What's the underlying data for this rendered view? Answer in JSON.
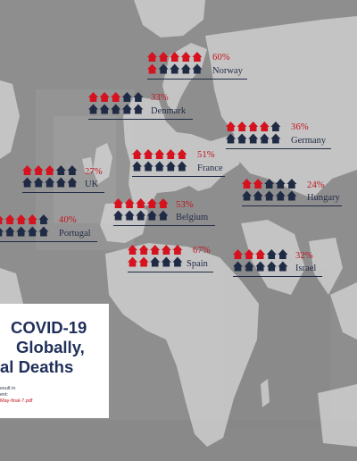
{
  "chart_data": {
    "type": "pictogram",
    "icons_per_country": 10,
    "highlight_color": "#d5121e",
    "base_color": "#1f2a44",
    "series": [
      {
        "country": "Norway",
        "value": 60,
        "label": "60%"
      },
      {
        "country": "Denmark",
        "value": 33,
        "label": "33%"
      },
      {
        "country": "Germany",
        "value": 36,
        "label": "36%"
      },
      {
        "country": "France",
        "value": 51,
        "label": "51%"
      },
      {
        "country": "UK",
        "value": 27,
        "label": "27%"
      },
      {
        "country": "Hungary",
        "value": 24,
        "label": "24%"
      },
      {
        "country": "Belgium",
        "value": 53,
        "label": "53%"
      },
      {
        "country": "Portugal",
        "value": 40,
        "label": "40%"
      },
      {
        "country": "Spain",
        "value": 67,
        "label": "67%"
      },
      {
        "country": "Israel",
        "value": 32,
        "label": "32%"
      }
    ]
  },
  "card": {
    "title_lines": [
      "COVID-19",
      "Globally,",
      "al Deaths"
    ],
    "note_lines": [
      "esult in",
      "ent:"
    ],
    "link_text": "May-final-7.pdf"
  }
}
